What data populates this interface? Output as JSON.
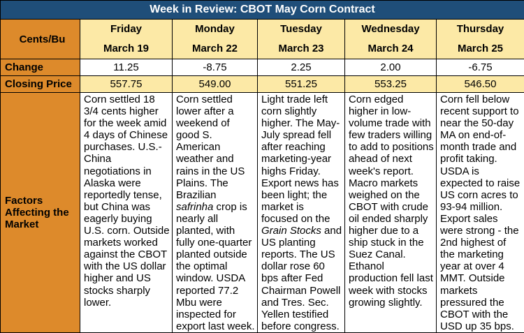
{
  "title": "Week in Review: CBOT May Corn Contract",
  "row_labels": {
    "unit": "Cents/Bu",
    "change": "Change",
    "closing_price": "Closing Price",
    "factors_line1": "Factors",
    "factors_line2": "Affecting the",
    "factors_line3": "Market"
  },
  "days": [
    {
      "day": "Friday",
      "date": "March 19",
      "change": "11.25",
      "close": "557.75",
      "factors": [
        {
          "t": "Corn settled 18 3/4 cents higher for the week amid 4 days of Chinese purchases. U.S.-China negotiations in Alaska were reportedly tense, but China was eagerly buying U.S. corn. Outside markets worked against the CBOT with the US dollar higher and US stocks sharply lower."
        }
      ]
    },
    {
      "day": "Monday",
      "date": "March 22",
      "change": "-8.75",
      "close": "549.00",
      "factors": [
        {
          "t": "Corn settled lower after a weekend of good S. American weather and rains in the US Plains. The Brazilian "
        },
        {
          "t": "safrinha",
          "i": true
        },
        {
          "t": " crop is nearly all planted, with fully one-quarter planted outside the optimal window. USDA reported 77.2 Mbu were inspected for export last week."
        }
      ]
    },
    {
      "day": "Tuesday",
      "date": "March 23",
      "change": "2.25",
      "close": "551.25",
      "factors": [
        {
          "t": "Light trade left corn slightly higher. The May-July spread fell after reaching marketing-year highs Friday. Export news has been light; the market is focused on the "
        },
        {
          "t": "Grain Stocks",
          "i": true
        },
        {
          "t": " and US planting reports. The US dollar rose 60 bps after Fed Chairman Powell and Tres. Sec. Yellen testified before congress."
        }
      ]
    },
    {
      "day": "Wednesday",
      "date": "March 24",
      "change": "2.00",
      "close": "553.25",
      "factors": [
        {
          "t": "Corn edged higher in low-volume trade with few traders willing to add to positions ahead of next week's report. Macro markets weighed on the CBOT with crude oil ended sharply higher due to a ship stuck in the Suez Canal. Ethanol production fell last week with stocks growing slightly."
        }
      ]
    },
    {
      "day": "Thursday",
      "date": "March 25",
      "change": "-6.75",
      "close": "546.50",
      "factors": [
        {
          "t": "Corn fell below recent support to near the 50-day MA on end-of-month trade and profit taking. USDA is expected to raise  US corn acres to 93-94 million. Export sales were strong - the 2nd highest of the marketing year at over 4 MMT. Outside markets pressured the CBOT with the USD up 35 bps."
        }
      ]
    }
  ]
}
